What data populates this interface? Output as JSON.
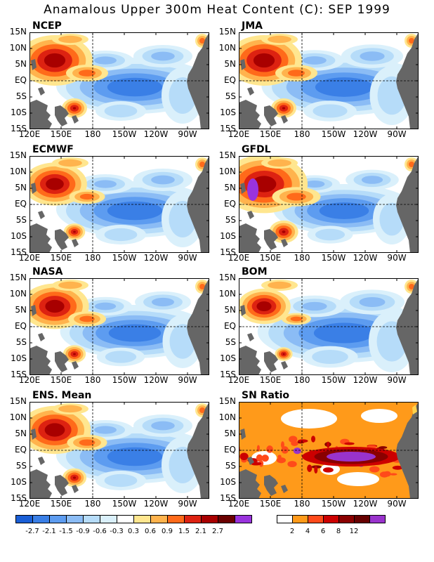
{
  "title": "Anamalous Upper 300m Heat Content (C): SEP 1999",
  "lat_labels": [
    "15N",
    "10N",
    "5N",
    "EQ",
    "5S",
    "10S",
    "15S"
  ],
  "lon_labels": [
    "120E",
    "150E",
    "180",
    "150W",
    "120W",
    "90W"
  ],
  "panels": [
    {
      "name": "NCEP",
      "warm_scale": 1.0,
      "cool_scale": 1.0
    },
    {
      "name": "JMA",
      "warm_scale": 1.0,
      "cool_scale": 1.05
    },
    {
      "name": "ECMWF",
      "warm_scale": 0.85,
      "cool_scale": 1.0
    },
    {
      "name": "GFDL",
      "warm_scale": 1.15,
      "cool_scale": 0.9
    },
    {
      "name": "NASA",
      "warm_scale": 0.9,
      "cool_scale": 0.95
    },
    {
      "name": "BOM",
      "warm_scale": 0.7,
      "cool_scale": 1.1
    },
    {
      "name": "ENS. Mean",
      "warm_scale": 0.95,
      "cool_scale": 1.0
    },
    {
      "name": "SN Ratio",
      "warm_scale": 0,
      "cool_scale": 0
    }
  ],
  "colorbar_anomaly": {
    "labels": [
      "-2.7",
      "-2.1",
      "-1.5",
      "-0.9",
      "-0.6",
      "-0.3",
      "0.3",
      "0.6",
      "0.9",
      "1.5",
      "2.1",
      "2.7"
    ],
    "colors": [
      "#1a5fd6",
      "#3a7fe6",
      "#5d9cf0",
      "#8bbcf5",
      "#b6dcf9",
      "#daf0fb",
      "#ffffff",
      "#ffe68f",
      "#ffb34d",
      "#ff6a1a",
      "#dd2211",
      "#a80000",
      "#6a0000",
      "#9933dd"
    ]
  },
  "colorbar_sn": {
    "labels": [
      "2",
      "4",
      "6",
      "8",
      "12"
    ],
    "colors": [
      "#ffffff",
      "#ff9a1a",
      "#ff4a1a",
      "#cc0000",
      "#8a0000",
      "#660000",
      "#9933cc"
    ]
  },
  "colors": {
    "land": "#666666",
    "axis": "#000000"
  }
}
